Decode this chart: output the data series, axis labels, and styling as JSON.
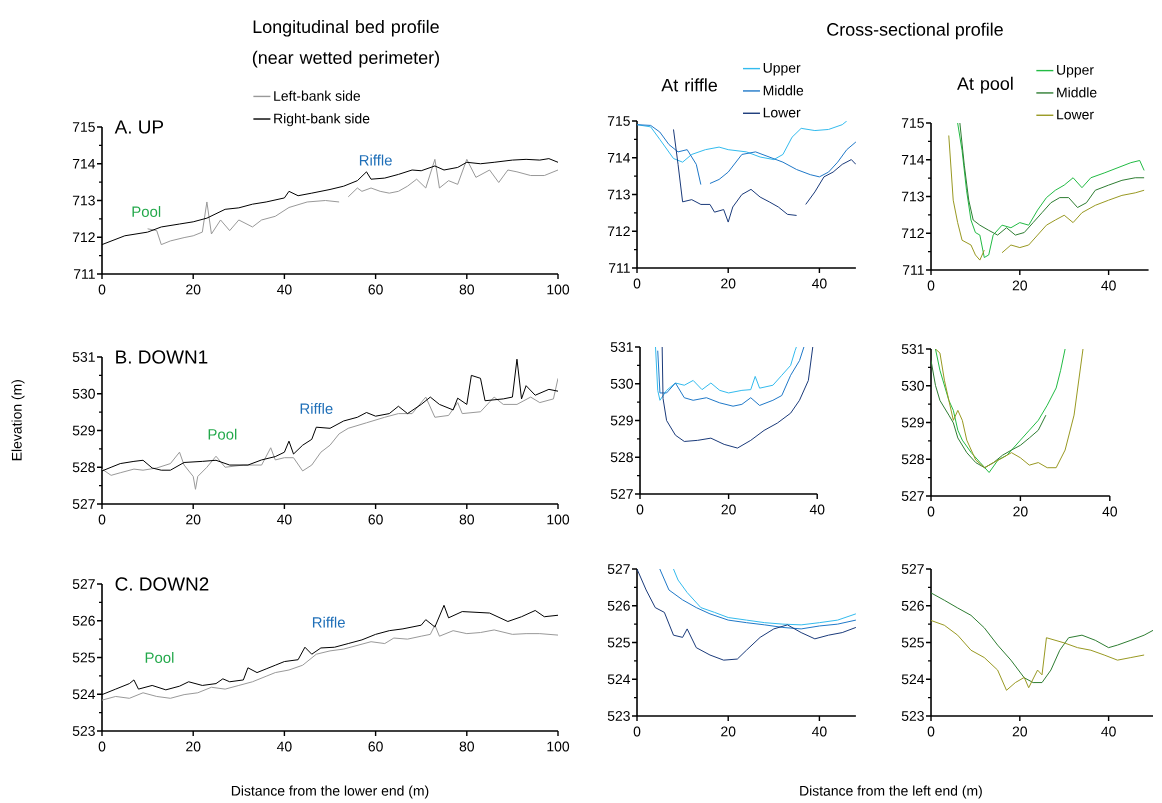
{
  "chart_data": [
    {
      "type": "line",
      "title": "Longitudinal bed profile (near wetted perimeter)",
      "subtitle": "A. UP",
      "legend": "top",
      "xlim": [
        0,
        100
      ],
      "ylim": [
        711,
        715
      ],
      "xticks": [
        0,
        20,
        40,
        60,
        80,
        100
      ],
      "yticks": [
        711,
        712,
        713,
        714,
        715
      ],
      "annotations": [
        "Pool",
        "Riffle"
      ],
      "series": [
        {
          "name": "Left-bank side",
          "color": "#999999",
          "x": [
            10,
            12,
            13,
            15,
            18,
            20,
            22,
            23,
            24,
            26,
            28,
            30,
            33,
            35,
            38,
            41,
            45,
            49,
            52,
            53,
            54,
            56,
            57,
            59,
            61,
            63,
            65,
            67,
            69,
            71,
            73,
            74,
            76,
            78,
            80,
            82,
            85,
            87,
            89,
            91,
            94,
            97,
            100
          ],
          "values": [
            712.23,
            712.18,
            711.8,
            711.9,
            711.99,
            712.04,
            712.14,
            712.96,
            712.09,
            712.47,
            712.18,
            712.47,
            712.28,
            712.47,
            712.57,
            712.81,
            712.96,
            713.0,
            712.96,
            null,
            713.1,
            713.34,
            713.25,
            713.34,
            713.25,
            713.2,
            713.25,
            713.39,
            713.58,
            713.34,
            714.12,
            713.34,
            713.54,
            713.44,
            714.12,
            713.63,
            713.83,
            713.49,
            713.83,
            713.78,
            713.68,
            713.68,
            713.83
          ]
        },
        {
          "name": "Right-bank side",
          "color": "#000000",
          "x": [
            0,
            5,
            10,
            13,
            17,
            20,
            23,
            27,
            30,
            33,
            36,
            40,
            41,
            43,
            46,
            50,
            53,
            56,
            58,
            59,
            62,
            65,
            68,
            70,
            73,
            75,
            78,
            80,
            83,
            86,
            90,
            93,
            96,
            98,
            100
          ],
          "values": [
            711.8,
            712.04,
            712.14,
            712.28,
            712.36,
            712.42,
            712.52,
            712.76,
            712.8,
            712.9,
            712.96,
            713.07,
            713.25,
            713.13,
            713.2,
            713.3,
            713.39,
            713.54,
            713.78,
            713.58,
            713.61,
            713.71,
            713.83,
            713.81,
            713.94,
            713.83,
            713.9,
            714.04,
            714.0,
            714.04,
            714.1,
            714.12,
            714.1,
            714.14,
            714.04
          ]
        }
      ]
    },
    {
      "type": "line",
      "title": "At riffle",
      "legend": "top right",
      "annotations": [
        "Cross-sectional profile"
      ],
      "xlim": [
        0,
        48
      ],
      "ylim": [
        711,
        715
      ],
      "xticks": [
        0,
        20,
        40
      ],
      "yticks": [
        711,
        712,
        713,
        714,
        715
      ],
      "series": [
        {
          "name": "Upper",
          "color": "#33bbee",
          "x": [
            0,
            3,
            5,
            8,
            10,
            12,
            15,
            18,
            20,
            24,
            27,
            30,
            32,
            34,
            36,
            39,
            42,
            45,
            46
          ],
          "values": [
            714.9,
            714.84,
            714.5,
            713.98,
            713.88,
            714.09,
            714.22,
            714.29,
            714.22,
            714.16,
            714.02,
            713.95,
            714.09,
            714.56,
            714.8,
            714.74,
            714.77,
            714.9,
            715.0
          ]
        },
        {
          "name": "Middle",
          "color": "#1f78c8",
          "x": [
            0,
            3,
            5,
            7,
            9,
            11,
            13,
            14,
            15,
            16,
            18,
            20,
            23,
            26,
            29,
            32,
            35,
            38,
            40,
            42,
            44,
            46,
            48
          ],
          "values": [
            714.9,
            714.88,
            714.7,
            714.36,
            714.16,
            714.22,
            713.82,
            713.27,
            null,
            713.3,
            713.41,
            713.61,
            714.09,
            714.16,
            714.02,
            713.88,
            713.68,
            713.54,
            713.48,
            713.61,
            713.88,
            714.22,
            714.43
          ]
        },
        {
          "name": "Lower",
          "color": "#1a3a7a",
          "x": [
            8,
            9,
            10,
            12,
            14,
            16,
            17,
            19,
            20,
            21,
            23,
            25,
            27,
            29,
            31,
            33,
            35,
            36,
            37,
            39,
            41,
            43,
            45,
            47,
            48
          ],
          "values": [
            714.77,
            713.82,
            712.8,
            712.86,
            712.73,
            712.73,
            712.52,
            712.59,
            712.25,
            712.66,
            713.0,
            713.14,
            712.93,
            712.8,
            712.66,
            712.46,
            712.43,
            null,
            712.73,
            713.07,
            713.48,
            713.61,
            713.82,
            713.95,
            713.82
          ]
        }
      ]
    },
    {
      "type": "line",
      "title": "At pool",
      "legend": "top right",
      "xlim": [
        0,
        49
      ],
      "ylim": [
        711,
        715
      ],
      "xticks": [
        0,
        20,
        40
      ],
      "yticks": [
        711,
        712,
        713,
        714,
        715
      ],
      "series": [
        {
          "name": "Upper",
          "color": "#22bb44",
          "x": [
            6,
            7,
            8,
            9,
            10,
            11,
            12,
            13,
            14,
            16,
            18,
            20,
            22,
            24,
            26,
            28,
            30,
            32,
            34,
            36,
            39,
            42,
            45,
            47,
            48
          ],
          "values": [
            715.0,
            714.25,
            713.17,
            712.36,
            712.02,
            711.95,
            711.34,
            711.41,
            711.95,
            712.22,
            712.15,
            712.29,
            712.22,
            712.63,
            712.97,
            713.17,
            713.31,
            713.51,
            713.24,
            713.51,
            713.64,
            713.78,
            713.92,
            713.98,
            713.71
          ]
        },
        {
          "name": "Middle",
          "color": "#2e7d32",
          "x": [
            6.5,
            7.5,
            8.5,
            9.5,
            11,
            13,
            15,
            17,
            19,
            21,
            23,
            25,
            27,
            29,
            31,
            33,
            35,
            37,
            40,
            43,
            46,
            48
          ],
          "values": [
            715.0,
            713.85,
            712.9,
            712.36,
            712.22,
            712.08,
            711.95,
            712.15,
            711.95,
            712.02,
            712.29,
            712.56,
            712.83,
            712.97,
            712.97,
            712.7,
            712.83,
            713.17,
            713.31,
            713.44,
            713.51,
            713.51
          ]
        },
        {
          "name": "Lower",
          "color": "#999922",
          "x": [
            4,
            5,
            6,
            7,
            9,
            10,
            11,
            12,
            14,
            16,
            18,
            20,
            22,
            24,
            26,
            28,
            30,
            32,
            34,
            37,
            40,
            43,
            46,
            48
          ],
          "values": [
            714.66,
            712.9,
            712.29,
            711.81,
            711.68,
            711.41,
            711.27,
            711.54,
            null,
            711.47,
            711.68,
            711.61,
            711.68,
            711.95,
            712.22,
            712.36,
            712.49,
            712.29,
            712.56,
            712.76,
            712.9,
            713.03,
            713.1,
            713.17
          ]
        }
      ]
    },
    {
      "type": "line",
      "subtitle": "B. DOWN1",
      "ylabel": "Elevation (m)",
      "xlim": [
        0,
        100
      ],
      "ylim": [
        527,
        531
      ],
      "xticks": [
        0,
        20,
        40,
        60,
        80,
        100
      ],
      "yticks": [
        527,
        528,
        529,
        530,
        531
      ],
      "annotations": [
        "Pool",
        "Riffle"
      ],
      "series": [
        {
          "color": "#999999",
          "x": [
            0,
            2,
            4,
            7,
            9,
            12,
            15,
            17,
            18,
            20,
            20.5,
            21,
            23,
            25,
            27,
            31,
            35,
            37,
            38,
            40,
            42,
            44,
            46,
            48,
            50,
            52,
            54,
            58,
            62,
            65,
            68,
            71,
            73,
            76,
            78,
            79,
            83,
            86,
            88,
            91,
            94,
            96,
            99,
            100
          ],
          "values": [
            527.95,
            527.78,
            527.85,
            527.95,
            527.92,
            527.98,
            528.1,
            528.41,
            528.06,
            527.75,
            527.4,
            527.75,
            528.0,
            528.3,
            528.0,
            528.06,
            528.06,
            528.53,
            528.2,
            528.26,
            528.26,
            527.9,
            528.06,
            528.41,
            528.6,
            528.91,
            529.06,
            529.21,
            529.36,
            529.46,
            529.46,
            529.91,
            529.36,
            529.41,
            529.76,
            529.46,
            529.51,
            529.91,
            529.71,
            529.71,
            529.91,
            529.76,
            529.86,
            530.42
          ]
        },
        {
          "color": "#000000",
          "x": [
            0,
            2,
            4,
            7,
            9,
            11,
            13,
            15,
            18,
            22,
            25,
            28,
            32,
            35,
            38,
            40,
            41,
            42,
            44,
            46,
            47,
            50,
            53,
            56,
            58,
            60,
            63,
            65,
            67,
            70,
            72,
            74,
            77,
            78,
            80,
            81,
            83,
            84,
            88,
            90,
            91,
            92,
            93,
            95,
            98,
            100
          ],
          "values": [
            527.9,
            528.0,
            528.1,
            528.16,
            528.19,
            527.98,
            527.92,
            527.92,
            528.13,
            528.16,
            528.19,
            528.06,
            528.06,
            528.2,
            528.29,
            528.41,
            528.71,
            528.36,
            528.6,
            528.76,
            529.09,
            529.06,
            529.26,
            529.36,
            529.49,
            529.39,
            529.46,
            529.66,
            529.46,
            529.71,
            529.91,
            529.71,
            529.56,
            529.88,
            529.71,
            530.5,
            530.42,
            529.81,
            529.86,
            529.91,
            530.94,
            529.86,
            530.22,
            529.96,
            530.12,
            530.07
          ]
        }
      ]
    },
    {
      "type": "line",
      "xlim": [
        0,
        40
      ],
      "ylim": [
        527,
        531
      ],
      "xticks": [
        0,
        20,
        40
      ],
      "yticks": [
        527,
        528,
        529,
        530,
        531
      ],
      "series": [
        {
          "color": "#33bbee",
          "x": [
            3.5,
            4,
            4.5,
            6,
            8,
            10,
            12,
            14,
            16,
            18,
            20,
            23,
            25,
            26,
            27,
            30,
            32,
            34,
            35,
            35.3
          ],
          "values": [
            531.0,
            529.82,
            529.55,
            529.82,
            530.02,
            529.96,
            530.09,
            529.84,
            530.02,
            529.82,
            529.75,
            529.82,
            529.84,
            530.2,
            529.88,
            529.96,
            530.23,
            530.5,
            530.9,
            531.0
          ]
        },
        {
          "color": "#1f78c8",
          "x": [
            4,
            4.5,
            6,
            8,
            10,
            12,
            15,
            18,
            21,
            23,
            25,
            27,
            30,
            32,
            34,
            36,
            37
          ],
          "values": [
            530.9,
            529.75,
            529.75,
            530.02,
            529.62,
            529.55,
            529.62,
            529.48,
            529.39,
            529.44,
            529.62,
            529.41,
            529.55,
            529.68,
            530.23,
            530.63,
            531.0
          ]
        },
        {
          "color": "#1a3a7a",
          "x": [
            5,
            5.2,
            6,
            8,
            10,
            13,
            16,
            19,
            22,
            25,
            28,
            31,
            34,
            36,
            38,
            39
          ],
          "values": [
            531.0,
            529.6,
            529.0,
            528.6,
            528.43,
            528.46,
            528.52,
            528.35,
            528.25,
            528.46,
            528.73,
            528.93,
            529.2,
            529.55,
            530.09,
            531.0
          ]
        }
      ]
    },
    {
      "type": "line",
      "xlim": [
        0,
        40
      ],
      "ylim": [
        527,
        531
      ],
      "xticks": [
        0,
        20,
        40
      ],
      "yticks": [
        527,
        528,
        529,
        530,
        531
      ],
      "series": [
        {
          "color": "#22bb44",
          "x": [
            1,
            2,
            4,
            5,
            6,
            7,
            9,
            11,
            13,
            15,
            17,
            20,
            22,
            24,
            26,
            28,
            29,
            30
          ],
          "values": [
            531.0,
            530.42,
            529.6,
            529.33,
            528.79,
            528.52,
            528.18,
            527.91,
            527.64,
            527.98,
            528.11,
            528.52,
            528.79,
            529.06,
            529.47,
            529.94,
            530.42,
            531.0
          ]
        },
        {
          "color": "#2e7d32",
          "x": [
            0,
            1,
            2,
            4,
            5,
            6,
            8,
            10,
            12,
            14,
            16,
            18,
            20,
            22,
            24,
            25.7
          ],
          "values": [
            530.69,
            530.01,
            529.6,
            529.2,
            528.99,
            528.58,
            528.18,
            527.91,
            527.77,
            527.91,
            528.11,
            528.25,
            528.38,
            528.58,
            528.79,
            529.2
          ]
        },
        {
          "color": "#999922",
          "x": [
            1,
            2,
            3,
            4,
            5,
            6,
            7,
            8,
            10,
            12,
            14,
            16,
            18,
            20,
            22,
            24,
            26,
            28,
            30,
            32,
            34
          ],
          "values": [
            531.0,
            530.89,
            530.15,
            529.6,
            529.06,
            529.33,
            529.06,
            528.52,
            527.98,
            527.77,
            527.91,
            528.04,
            528.18,
            528.04,
            527.84,
            527.91,
            527.77,
            527.77,
            528.25,
            529.2,
            531.0
          ]
        }
      ]
    },
    {
      "type": "line",
      "subtitle": "C. DOWN2",
      "xlabel": "Distance from the lower end (m)",
      "xlim": [
        0,
        100
      ],
      "ylim": [
        523,
        527
      ],
      "xticks": [
        0,
        20,
        40,
        60,
        80,
        100
      ],
      "yticks": [
        523,
        524,
        525,
        526,
        527
      ],
      "annotations": [
        "Pool",
        "Riffle"
      ],
      "series": [
        {
          "color": "#999999",
          "x": [
            0,
            3,
            6,
            9,
            12,
            15,
            18,
            21,
            24,
            27,
            30,
            33,
            36,
            38,
            41,
            44,
            47,
            50,
            53,
            56,
            59,
            62,
            64,
            67,
            70,
            72,
            73,
            74,
            77,
            80,
            83,
            86,
            90,
            93,
            96,
            100
          ],
          "values": [
            523.84,
            523.94,
            523.89,
            524.04,
            523.94,
            523.89,
            523.99,
            524.04,
            524.19,
            524.14,
            524.24,
            524.34,
            524.49,
            524.59,
            524.66,
            524.79,
            525.09,
            525.18,
            525.23,
            525.33,
            525.43,
            525.38,
            525.53,
            525.5,
            525.58,
            525.63,
            525.88,
            525.58,
            525.73,
            525.65,
            525.68,
            525.75,
            525.63,
            525.65,
            525.65,
            525.61
          ]
        },
        {
          "color": "#000000",
          "x": [
            0,
            3,
            6,
            7,
            8,
            11,
            14,
            17,
            19,
            22,
            25,
            26.5,
            28,
            31,
            32,
            34,
            36,
            38,
            40,
            43,
            44.5,
            46,
            48,
            51,
            54,
            57,
            60,
            63,
            66,
            70,
            71,
            73,
            75,
            76,
            79,
            82,
            85,
            89,
            92,
            95,
            97,
            100
          ],
          "values": [
            523.99,
            524.14,
            524.29,
            524.39,
            524.14,
            524.24,
            524.12,
            524.22,
            524.34,
            524.24,
            524.29,
            524.42,
            524.34,
            524.39,
            524.72,
            524.59,
            524.69,
            524.79,
            524.89,
            524.94,
            525.28,
            525.09,
            525.26,
            525.28,
            525.38,
            525.48,
            525.63,
            525.73,
            525.78,
            525.88,
            526.03,
            525.83,
            526.42,
            526.08,
            526.25,
            526.23,
            526.21,
            525.98,
            526.11,
            526.28,
            526.11,
            526.15
          ]
        }
      ]
    },
    {
      "type": "line",
      "xlabel": "Distance from the left end (m)",
      "xlim": [
        0,
        48
      ],
      "ylim": [
        523,
        527
      ],
      "xticks": [
        0,
        20,
        40
      ],
      "yticks": [
        523,
        524,
        525,
        526,
        527
      ],
      "series": [
        {
          "color": "#33bbee",
          "x": [
            8,
            9,
            11,
            14,
            17,
            20,
            24,
            28,
            32,
            36,
            40,
            44,
            48
          ],
          "values": [
            527.0,
            526.7,
            526.36,
            525.95,
            525.82,
            525.68,
            525.61,
            525.54,
            525.5,
            525.48,
            525.54,
            525.61,
            525.78
          ]
        },
        {
          "color": "#1f78c8",
          "x": [
            5,
            7,
            10,
            13,
            16,
            20,
            24,
            28,
            32,
            36,
            40,
            44,
            48
          ],
          "values": [
            527.0,
            526.43,
            526.16,
            525.95,
            525.78,
            525.61,
            525.54,
            525.48,
            525.41,
            525.37,
            525.45,
            525.5,
            525.61
          ]
        },
        {
          "color": "#1a3a7a",
          "x": [
            0,
            2,
            4,
            6,
            8,
            10,
            11,
            13,
            16,
            19,
            22,
            24,
            27,
            30,
            33,
            36,
            39,
            42,
            45,
            48
          ],
          "values": [
            527.0,
            526.43,
            525.95,
            525.82,
            525.2,
            525.14,
            525.37,
            524.86,
            524.66,
            524.52,
            524.55,
            524.79,
            525.14,
            525.37,
            525.48,
            525.27,
            525.1,
            525.2,
            525.27,
            525.41
          ]
        }
      ]
    },
    {
      "type": "line",
      "xlim": [
        0,
        50
      ],
      "ylim": [
        523,
        527
      ],
      "xticks": [
        0,
        20,
        40
      ],
      "yticks": [
        523,
        524,
        525,
        526,
        527
      ],
      "series": [
        {
          "color": "#2e7d32",
          "x": [
            0,
            3,
            6,
            9,
            12,
            15,
            18,
            21,
            23,
            25,
            27,
            29,
            31,
            34,
            37,
            40,
            42,
            45,
            48,
            50
          ],
          "values": [
            526.35,
            526.15,
            525.94,
            525.74,
            525.4,
            524.93,
            524.52,
            524.04,
            523.91,
            523.91,
            524.25,
            524.79,
            525.13,
            525.2,
            525.06,
            524.86,
            524.93,
            525.06,
            525.2,
            525.33
          ]
        },
        {
          "color": "#999922",
          "x": [
            0,
            3,
            6,
            9,
            12,
            15,
            17,
            19,
            21,
            22,
            24,
            25,
            26,
            28,
            30,
            33,
            36,
            39,
            42,
            45,
            48
          ],
          "values": [
            525.6,
            525.47,
            525.2,
            524.79,
            524.59,
            524.25,
            523.7,
            523.91,
            524.05,
            523.77,
            524.25,
            524.12,
            525.13,
            525.06,
            524.99,
            524.86,
            524.79,
            524.66,
            524.52,
            524.59,
            524.66
          ]
        }
      ]
    }
  ]
}
